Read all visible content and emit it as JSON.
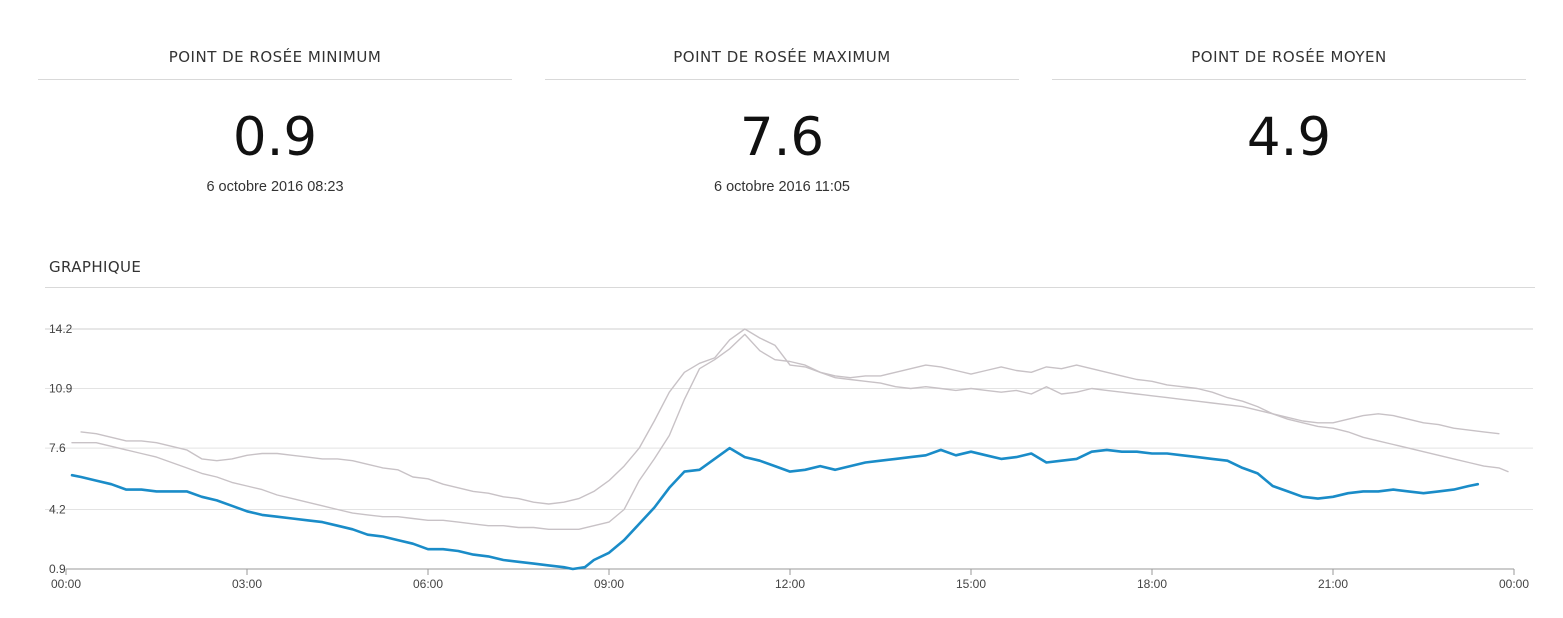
{
  "stats": {
    "min": {
      "title": "POINT DE ROSÉE MINIMUM",
      "value": "0.9",
      "date": "6 octobre 2016 08:23"
    },
    "max": {
      "title": "POINT DE ROSÉE MAXIMUM",
      "value": "7.6",
      "date": "6 octobre 2016 11:05"
    },
    "avg": {
      "title": "POINT DE ROSÉE MOYEN",
      "value": "4.9"
    }
  },
  "graph_title": "GRAPHIQUE",
  "chart_data": {
    "type": "line",
    "title": "",
    "xlabel": "",
    "ylabel": "",
    "xlim": [
      0,
      24
    ],
    "ylim": [
      0.9,
      14.2
    ],
    "grid": true,
    "x_ticks": [
      "00:00",
      "03:00",
      "06:00",
      "09:00",
      "12:00",
      "15:00",
      "18:00",
      "21:00",
      "00:00"
    ],
    "y_ticks": [
      "0.9",
      "4.2",
      "7.6",
      "10.9",
      "14.2"
    ],
    "colors": {
      "main": "#1a8cc8",
      "reference": "#c8c2c6"
    },
    "series": [
      {
        "x": [
          0.1,
          0.25,
          0.5,
          0.75,
          1.0,
          1.25,
          1.5,
          1.75,
          2.0,
          2.25,
          2.5,
          2.75,
          3.0,
          3.25,
          3.5,
          3.75,
          4.0,
          4.25,
          4.5,
          4.75,
          5.0,
          5.25,
          5.5,
          5.75,
          6.0,
          6.25,
          6.5,
          6.75,
          7.0,
          7.25,
          7.5,
          7.75,
          8.0,
          8.25,
          8.4,
          8.6,
          8.75,
          9.0,
          9.25,
          9.5,
          9.75,
          10.0,
          10.25,
          10.5,
          10.75,
          11.0,
          11.25,
          11.5,
          11.75,
          12.0,
          12.25,
          12.5,
          12.75,
          13.0,
          13.25,
          13.5,
          13.75,
          14.0,
          14.25,
          14.5,
          14.75,
          15.0,
          15.25,
          15.5,
          15.75,
          16.0,
          16.25,
          16.5,
          16.75,
          17.0,
          17.25,
          17.5,
          17.75,
          18.0,
          18.25,
          18.5,
          18.75,
          19.0,
          19.25,
          19.5,
          19.75,
          20.0,
          20.25,
          20.5,
          20.75,
          21.0,
          21.25,
          21.5,
          21.75,
          22.0,
          22.25,
          22.5,
          22.75,
          23.0,
          23.25,
          23.4
        ],
        "values": [
          6.1,
          6.0,
          5.8,
          5.6,
          5.3,
          5.3,
          5.2,
          5.2,
          5.2,
          4.9,
          4.7,
          4.4,
          4.1,
          3.9,
          3.8,
          3.7,
          3.6,
          3.5,
          3.3,
          3.1,
          2.8,
          2.7,
          2.5,
          2.3,
          2.0,
          2.0,
          1.9,
          1.7,
          1.6,
          1.4,
          1.3,
          1.2,
          1.1,
          1.0,
          0.9,
          1.0,
          1.4,
          1.8,
          2.5,
          3.4,
          4.3,
          5.4,
          6.3,
          6.4,
          7.0,
          7.6,
          7.1,
          6.9,
          6.6,
          6.3,
          6.4,
          6.6,
          6.4,
          6.6,
          6.8,
          6.9,
          7.0,
          7.1,
          7.2,
          7.5,
          7.2,
          7.4,
          7.2,
          7.0,
          7.1,
          7.3,
          6.8,
          6.9,
          7.0,
          7.4,
          7.5,
          7.4,
          7.4,
          7.3,
          7.3,
          7.2,
          7.1,
          7.0,
          6.9,
          6.5,
          6.2,
          5.5,
          5.2,
          4.9,
          4.8,
          4.9,
          5.1,
          5.2,
          5.2,
          5.3,
          5.2,
          5.1,
          5.2,
          5.3,
          5.5,
          5.6
        ]
      },
      {
        "x": [
          0.25,
          0.5,
          0.75,
          1.0,
          1.25,
          1.5,
          1.75,
          2.0,
          2.25,
          2.5,
          2.75,
          3.0,
          3.25,
          3.5,
          3.75,
          4.0,
          4.25,
          4.5,
          4.75,
          5.0,
          5.25,
          5.5,
          5.75,
          6.0,
          6.25,
          6.5,
          6.75,
          7.0,
          7.25,
          7.5,
          7.75,
          8.0,
          8.25,
          8.5,
          8.75,
          9.0,
          9.25,
          9.5,
          9.75,
          10.0,
          10.25,
          10.5,
          10.75,
          11.0,
          11.25,
          11.5,
          11.75,
          12.0,
          12.25,
          12.5,
          12.75,
          13.0,
          13.25,
          13.5,
          13.75,
          14.0,
          14.25,
          14.5,
          14.75,
          15.0,
          15.25,
          15.5,
          15.75,
          16.0,
          16.25,
          16.5,
          16.75,
          17.0,
          17.25,
          17.5,
          17.75,
          18.0,
          18.25,
          18.5,
          18.75,
          19.0,
          19.25,
          19.5,
          19.75,
          20.0,
          20.25,
          20.5,
          20.75,
          21.0,
          21.25,
          21.5,
          21.75,
          22.0,
          22.25,
          22.5,
          22.75,
          23.0,
          23.25,
          23.5,
          23.75
        ],
        "values": [
          8.5,
          8.4,
          8.2,
          8.0,
          8.0,
          7.9,
          7.7,
          7.5,
          7.0,
          6.9,
          7.0,
          7.2,
          7.3,
          7.3,
          7.2,
          7.1,
          7.0,
          7.0,
          6.9,
          6.7,
          6.5,
          6.4,
          6.0,
          5.9,
          5.6,
          5.4,
          5.2,
          5.1,
          4.9,
          4.8,
          4.6,
          4.5,
          4.6,
          4.8,
          5.2,
          5.8,
          6.6,
          7.6,
          9.1,
          10.7,
          11.8,
          12.3,
          12.6,
          13.6,
          14.2,
          13.7,
          13.3,
          12.2,
          12.1,
          11.8,
          11.6,
          11.5,
          11.6,
          11.6,
          11.8,
          12.0,
          12.2,
          12.1,
          11.9,
          11.7,
          11.9,
          12.1,
          11.9,
          11.8,
          12.1,
          12.0,
          12.2,
          12.0,
          11.8,
          11.6,
          11.4,
          11.3,
          11.1,
          11.0,
          10.9,
          10.7,
          10.4,
          10.2,
          9.9,
          9.5,
          9.3,
          9.1,
          9.0,
          9.0,
          9.2,
          9.4,
          9.5,
          9.4,
          9.2,
          9.0,
          8.9,
          8.7,
          8.6,
          8.5,
          8.4
        ]
      },
      {
        "x": [
          0.1,
          0.5,
          0.75,
          1.0,
          1.25,
          1.5,
          1.75,
          2.0,
          2.25,
          2.5,
          2.75,
          3.0,
          3.25,
          3.5,
          3.75,
          4.0,
          4.25,
          4.5,
          4.75,
          5.0,
          5.25,
          5.5,
          5.75,
          6.0,
          6.25,
          6.5,
          6.75,
          7.0,
          7.25,
          7.5,
          7.75,
          8.0,
          8.25,
          8.5,
          8.75,
          9.0,
          9.25,
          9.5,
          9.75,
          10.0,
          10.25,
          10.5,
          10.75,
          11.0,
          11.25,
          11.5,
          11.75,
          12.0,
          12.25,
          12.5,
          12.75,
          13.0,
          13.25,
          13.5,
          13.75,
          14.0,
          14.25,
          14.5,
          14.75,
          15.0,
          15.25,
          15.5,
          15.75,
          16.0,
          16.25,
          16.5,
          16.75,
          17.0,
          17.25,
          17.5,
          17.75,
          18.0,
          18.25,
          18.5,
          18.75,
          19.0,
          19.25,
          19.5,
          19.75,
          20.0,
          20.25,
          20.5,
          20.75,
          21.0,
          21.25,
          21.5,
          21.75,
          22.0,
          22.25,
          22.5,
          22.75,
          23.0,
          23.25,
          23.5,
          23.75,
          23.9
        ],
        "values": [
          7.9,
          7.9,
          7.7,
          7.5,
          7.3,
          7.1,
          6.8,
          6.5,
          6.2,
          6.0,
          5.7,
          5.5,
          5.3,
          5.0,
          4.8,
          4.6,
          4.4,
          4.2,
          4.0,
          3.9,
          3.8,
          3.8,
          3.7,
          3.6,
          3.6,
          3.5,
          3.4,
          3.3,
          3.3,
          3.2,
          3.2,
          3.1,
          3.1,
          3.1,
          3.3,
          3.5,
          4.2,
          5.8,
          7.0,
          8.3,
          10.3,
          12.0,
          12.5,
          13.1,
          13.9,
          13.0,
          12.5,
          12.4,
          12.2,
          11.8,
          11.5,
          11.4,
          11.3,
          11.2,
          11.0,
          10.9,
          11.0,
          10.9,
          10.8,
          10.9,
          10.8,
          10.7,
          10.8,
          10.6,
          11.0,
          10.6,
          10.7,
          10.9,
          10.8,
          10.7,
          10.6,
          10.5,
          10.4,
          10.3,
          10.2,
          10.1,
          10.0,
          9.9,
          9.7,
          9.5,
          9.2,
          9.0,
          8.8,
          8.7,
          8.5,
          8.2,
          8.0,
          7.8,
          7.6,
          7.4,
          7.2,
          7.0,
          6.8,
          6.6,
          6.5,
          6.3
        ]
      }
    ]
  }
}
